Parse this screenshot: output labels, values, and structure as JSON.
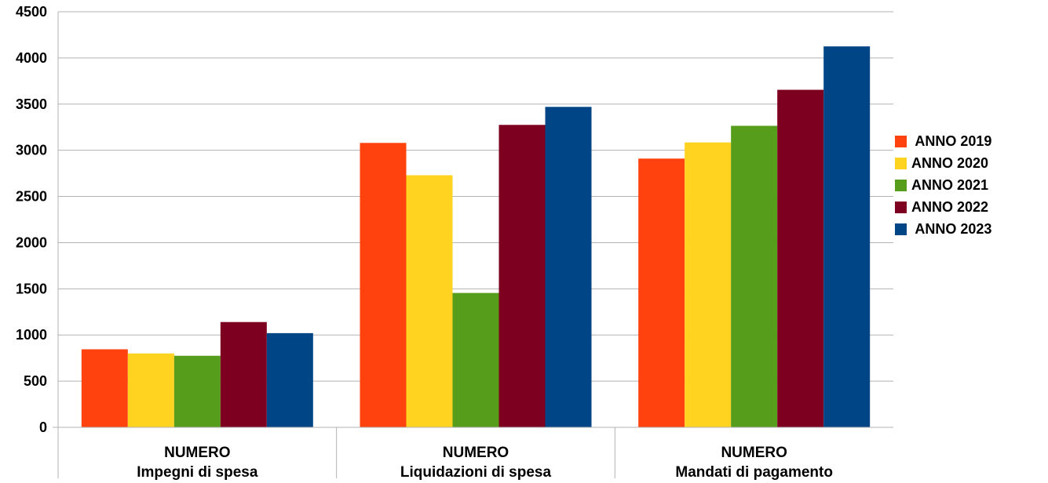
{
  "chart_data": {
    "type": "bar",
    "title": "",
    "xlabel": "",
    "ylabel": "",
    "ylim": [
      0,
      4500
    ],
    "yticks": [
      0,
      500,
      1000,
      1500,
      2000,
      2500,
      3000,
      3500,
      4000,
      4500
    ],
    "grid": true,
    "legend_position": "right",
    "categories": [
      [
        "NUMERO",
        "Impegni di spesa"
      ],
      [
        "NUMERO",
        "Liquidazioni di spesa"
      ],
      [
        "NUMERO",
        "Mandati di pagamento"
      ]
    ],
    "series": [
      {
        "name": " ANNO 2019",
        "color": "#ff420e",
        "values": [
          845,
          3080,
          2910
        ]
      },
      {
        "name": "ANNO 2020",
        "color": "#ffd320",
        "values": [
          800,
          2730,
          3085
        ]
      },
      {
        "name": "ANNO 2021",
        "color": "#579d1c",
        "values": [
          775,
          1455,
          3265
        ]
      },
      {
        "name": "ANNO 2022",
        "color": "#7e0021",
        "values": [
          1140,
          3275,
          3655
        ]
      },
      {
        "name": " ANNO 2023",
        "color": "#004586",
        "values": [
          1020,
          3470,
          4125
        ]
      }
    ]
  }
}
